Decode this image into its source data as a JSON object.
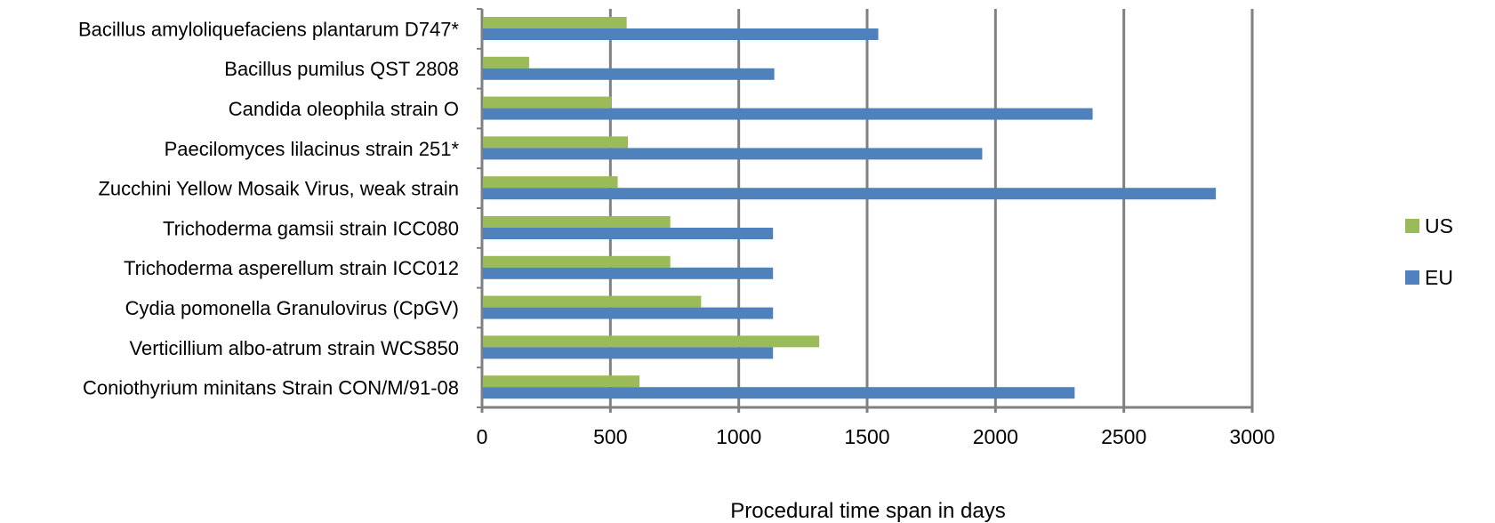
{
  "chart_data": {
    "type": "bar",
    "orientation": "horizontal",
    "categories": [
      "Bacillus amyloliquefaciens plantarum D747*",
      "Bacillus pumilus QST 2808",
      "Candida oleophila strain O",
      "Paecilomyces lilacinus strain 251*",
      "Zucchini Yellow Mosaik Virus, weak strain",
      "Trichoderma gamsii strain ICC080",
      "Trichoderma asperellum strain ICC012",
      "Cydia pomonella Granulovirus (CpGV)",
      "Verticillium albo-atrum strain WCS850",
      "Coniothyrium minitans Strain CON/M/91-08"
    ],
    "series": [
      {
        "name": "US",
        "color": "#9BBB59",
        "values": [
          560,
          180,
          500,
          565,
          525,
          730,
          730,
          850,
          1310,
          610
        ]
      },
      {
        "name": "EU",
        "color": "#4F81BD",
        "values": [
          1540,
          1135,
          2375,
          1945,
          2855,
          1130,
          1130,
          1130,
          1130,
          2305
        ]
      }
    ],
    "xlabel": "Procedural time span in days",
    "ylabel": "",
    "title": "",
    "xlim": [
      0,
      3000
    ],
    "xticks": [
      "0",
      "500",
      "1000",
      "1500",
      "2000",
      "2500",
      "3000"
    ],
    "xtick_values": [
      0,
      500,
      1000,
      1500,
      2000,
      2500,
      3000
    ],
    "grid": true,
    "gridline_color": "#808080",
    "legend_position": "right"
  }
}
